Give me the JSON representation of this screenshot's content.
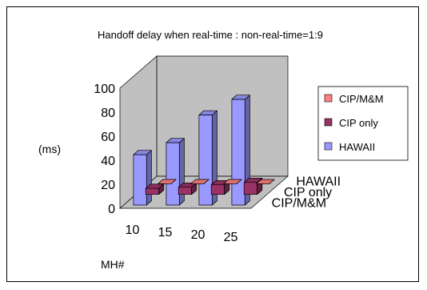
{
  "chart_data": {
    "type": "bar",
    "title": "Handoff delay when real-time : non-real-time=1:9",
    "xlabel": "MH#",
    "ylabel": "(ms)",
    "categories": [
      "10",
      "15",
      "20",
      "25"
    ],
    "series": [
      {
        "name": "CIP/M&M",
        "values": [
          0,
          0,
          0,
          0
        ],
        "color": "#FF8080"
      },
      {
        "name": "CIP only",
        "values": [
          5,
          6,
          8,
          10
        ],
        "color": "#993366"
      },
      {
        "name": "HAWAII",
        "values": [
          42,
          52,
          75,
          88
        ],
        "color": "#9999FF"
      }
    ],
    "depth_labels": [
      "HAWAII",
      "CIP only",
      "CIP/M&M"
    ],
    "ylim": [
      0,
      100
    ],
    "yticks": [
      "0",
      "20",
      "40",
      "60",
      "80",
      "100"
    ],
    "legend_position": "right",
    "grid": false
  }
}
